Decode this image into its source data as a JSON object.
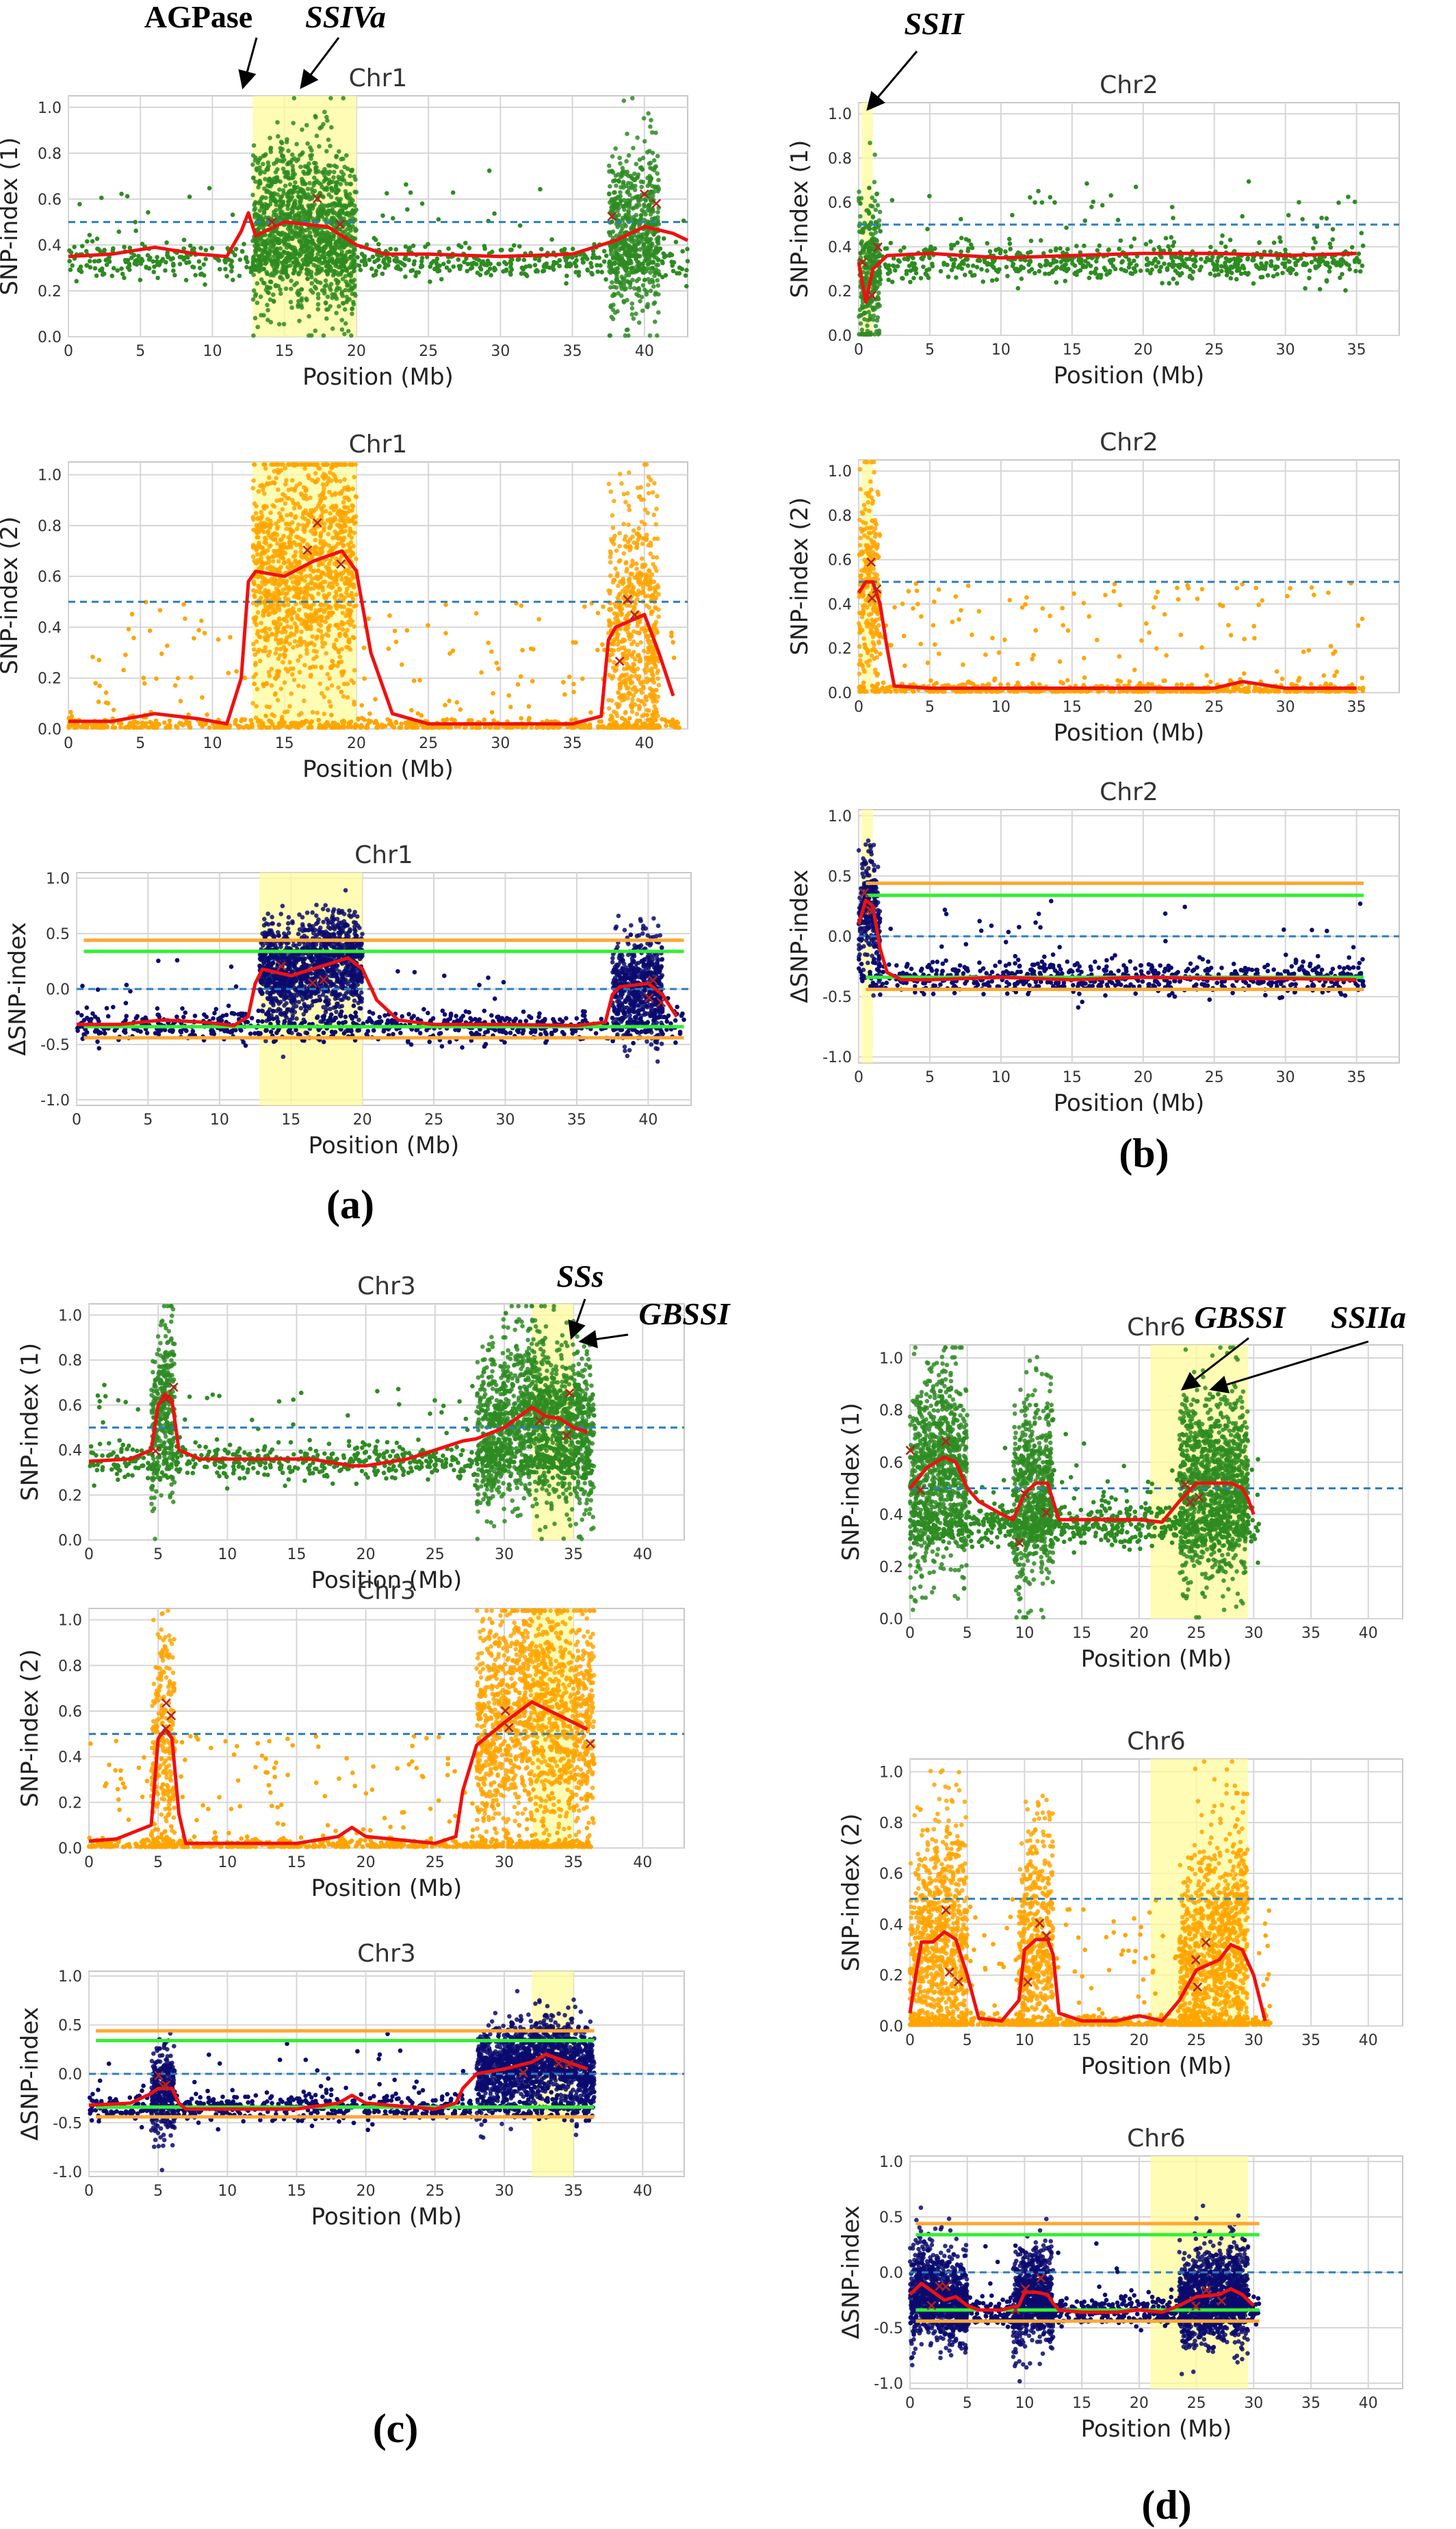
{
  "figure": {
    "panel_labels": [
      "(a)",
      "(b)",
      "(c)",
      "(d)"
    ],
    "gene_annotations": [
      {
        "panel": "a",
        "labels": [
          {
            "text": "AGPase",
            "italic": false
          },
          {
            "text": "SSIVa",
            "italic": true
          }
        ]
      },
      {
        "panel": "b",
        "labels": [
          {
            "text": "SSII",
            "italic": true
          }
        ]
      },
      {
        "panel": "c",
        "labels": [
          {
            "text": "SSs",
            "italic": true
          },
          {
            "text": "GBSSI",
            "italic": true
          }
        ]
      },
      {
        "panel": "d",
        "labels": [
          {
            "text": "GBSSI",
            "italic": true
          },
          {
            "text": "SSIIa",
            "italic": true
          }
        ]
      }
    ],
    "colors": {
      "snp1_points": "#2e8b22",
      "snp2_points": "#ffa500",
      "delta_points": "#0b0b6e",
      "smooth_line": "#ee1111",
      "threshold_dashed": "#2a7fc0",
      "ci99_line": "#ffa733",
      "ci95_line": "#33ee33",
      "highlight": "#fffb9c",
      "marker_x": "#b5221f"
    }
  },
  "chart_data": [
    {
      "panel": "a",
      "type": "scatter",
      "title": "Chr1",
      "xlabel": "Position (Mb)",
      "ylabel": "SNP-index (1)",
      "xlim": [
        0,
        43
      ],
      "ylim": [
        0,
        1.05
      ],
      "xticks": [
        0,
        5,
        10,
        15,
        20,
        25,
        30,
        35,
        40
      ],
      "yticks": [
        0.0,
        0.2,
        0.4,
        0.6,
        0.8,
        1.0
      ],
      "tick_labels_y": [
        "0.0",
        "0.2",
        "0.4",
        "0.6",
        "0.8",
        "1.0"
      ],
      "threshold": 0.5,
      "highlight": [
        12.8,
        20.0
      ],
      "dense": [
        [
          12.8,
          20.0
        ],
        [
          37.5,
          41.0
        ]
      ],
      "baseline": 0.33,
      "spread": 0.12,
      "smooth": {
        "x": [
          0,
          3,
          6,
          9,
          11,
          12,
          12.5,
          13,
          15,
          18,
          20,
          22,
          25,
          30,
          35,
          38,
          40,
          42,
          43
        ],
        "y": [
          0.35,
          0.36,
          0.39,
          0.36,
          0.35,
          0.46,
          0.54,
          0.44,
          0.5,
          0.48,
          0.4,
          0.36,
          0.36,
          0.35,
          0.36,
          0.42,
          0.48,
          0.45,
          0.42
        ]
      }
    },
    {
      "panel": "a",
      "type": "scatter",
      "title": "Chr1",
      "xlabel": "Position (Mb)",
      "ylabel": "SNP-index (2)",
      "xlim": [
        0,
        43
      ],
      "ylim": [
        0,
        1.05
      ],
      "xticks": [
        0,
        5,
        10,
        15,
        20,
        25,
        30,
        35,
        40
      ],
      "yticks": [
        0.0,
        0.2,
        0.4,
        0.6,
        0.8,
        1.0
      ],
      "tick_labels_y": [
        "0.0",
        "0.2",
        "0.4",
        "0.6",
        "0.8",
        "1.0"
      ],
      "threshold": 0.5,
      "highlight": [
        12.8,
        20.0
      ],
      "dense": [
        [
          12.8,
          20.0
        ],
        [
          37.5,
          41.0
        ]
      ],
      "baseline": 0.03,
      "spread": 0.07,
      "smooth": {
        "x": [
          0,
          3,
          6,
          9,
          11,
          12,
          12.5,
          13,
          15,
          17,
          19,
          20,
          21,
          22.5,
          25,
          30,
          35,
          37,
          37.5,
          38,
          40,
          41,
          42
        ],
        "y": [
          0.03,
          0.03,
          0.06,
          0.04,
          0.02,
          0.2,
          0.58,
          0.62,
          0.6,
          0.66,
          0.7,
          0.62,
          0.3,
          0.06,
          0.02,
          0.02,
          0.02,
          0.05,
          0.35,
          0.4,
          0.45,
          0.3,
          0.13
        ]
      }
    },
    {
      "panel": "a",
      "type": "scatter",
      "title": "Chr1",
      "xlabel": "Position (Mb)",
      "ylabel": "ΔSNP-index",
      "xlim": [
        0,
        43
      ],
      "ylim": [
        -1.05,
        1.05
      ],
      "xticks": [
        0,
        5,
        10,
        15,
        20,
        25,
        30,
        35,
        40
      ],
      "yticks": [
        -1.0,
        -0.5,
        0.0,
        0.5,
        1.0
      ],
      "tick_labels_y": [
        "-1.0",
        "-0.5",
        "0.0",
        "0.5",
        "1.0"
      ],
      "threshold": 0.0,
      "highlight": [
        12.8,
        20.0
      ],
      "dense": [
        [
          12.8,
          20.0
        ],
        [
          37.5,
          41.0
        ]
      ],
      "baseline": -0.33,
      "spread": 0.18,
      "ci": {
        "upper99": 0.44,
        "upper95": 0.34,
        "lower95": -0.34,
        "lower99": -0.44
      },
      "smooth": {
        "x": [
          0,
          3,
          6,
          9,
          11,
          12,
          12.5,
          13,
          15,
          17,
          19,
          20,
          21,
          22.5,
          25,
          30,
          35,
          37,
          37.5,
          38,
          40,
          41,
          42
        ],
        "y": [
          -0.32,
          -0.32,
          -0.28,
          -0.3,
          -0.33,
          -0.25,
          0.05,
          0.18,
          0.12,
          0.2,
          0.28,
          0.18,
          -0.1,
          -0.28,
          -0.32,
          -0.32,
          -0.33,
          -0.3,
          -0.05,
          0.02,
          0.05,
          -0.05,
          -0.25
        ]
      }
    },
    {
      "panel": "b",
      "type": "scatter",
      "title": "Chr2",
      "xlabel": "Position (Mb)",
      "ylabel": "SNP-index (1)",
      "xlim": [
        0,
        38
      ],
      "ylim": [
        0,
        1.05
      ],
      "xticks": [
        0,
        5,
        10,
        15,
        20,
        25,
        30,
        35
      ],
      "yticks": [
        0.0,
        0.2,
        0.4,
        0.6,
        0.8,
        1.0
      ],
      "tick_labels_y": [
        "0.0",
        "0.2",
        "0.4",
        "0.6",
        "0.8",
        "1.0"
      ],
      "threshold": 0.5,
      "highlight": [
        0.2,
        1.0
      ],
      "dense": [
        [
          0,
          1.5
        ]
      ],
      "baseline": 0.33,
      "spread": 0.1,
      "smooth": {
        "x": [
          0,
          0.5,
          1,
          2,
          5,
          10,
          15,
          20,
          25,
          30,
          35
        ],
        "y": [
          0.33,
          0.15,
          0.3,
          0.36,
          0.37,
          0.35,
          0.36,
          0.37,
          0.37,
          0.36,
          0.37
        ]
      }
    },
    {
      "panel": "b",
      "type": "scatter",
      "title": "Chr2",
      "xlabel": "Position (Mb)",
      "ylabel": "SNP-index (2)",
      "xlim": [
        0,
        38
      ],
      "ylim": [
        0,
        1.05
      ],
      "xticks": [
        0,
        5,
        10,
        15,
        20,
        25,
        30,
        35
      ],
      "yticks": [
        0.0,
        0.2,
        0.4,
        0.6,
        0.8,
        1.0
      ],
      "tick_labels_y": [
        "0.0",
        "0.2",
        "0.4",
        "0.6",
        "0.8",
        "1.0"
      ],
      "threshold": 0.5,
      "highlight": [
        0.2,
        1.0
      ],
      "dense": [
        [
          0,
          1.5
        ]
      ],
      "baseline": 0.02,
      "spread": 0.05,
      "smooth": {
        "x": [
          0,
          0.5,
          1,
          1.5,
          2,
          2.5,
          5,
          10,
          15,
          20,
          25,
          27,
          30,
          35
        ],
        "y": [
          0.45,
          0.5,
          0.5,
          0.4,
          0.2,
          0.03,
          0.02,
          0.02,
          0.02,
          0.02,
          0.02,
          0.05,
          0.02,
          0.02
        ]
      }
    },
    {
      "panel": "b",
      "type": "scatter",
      "title": "Chr2",
      "xlabel": "Position (Mb)",
      "ylabel": "ΔSNP-index",
      "xlim": [
        0,
        38
      ],
      "ylim": [
        -1.05,
        1.05
      ],
      "xticks": [
        0,
        5,
        10,
        15,
        20,
        25,
        30,
        35
      ],
      "yticks": [
        -1.0,
        -0.5,
        0.0,
        0.5,
        1.0
      ],
      "tick_labels_y": [
        "-1.0",
        "-0.5",
        "0.0",
        "0.5",
        "1.0"
      ],
      "threshold": 0.0,
      "highlight": [
        0.2,
        1.0
      ],
      "dense": [
        [
          0,
          1.5
        ]
      ],
      "baseline": -0.34,
      "spread": 0.15,
      "ci": {
        "upper99": 0.44,
        "upper95": 0.34,
        "lower95": -0.34,
        "lower99": -0.44
      },
      "smooth": {
        "x": [
          0,
          0.5,
          1,
          1.5,
          2,
          3,
          5,
          10,
          15,
          20,
          25,
          30,
          35
        ],
        "y": [
          0.1,
          0.3,
          0.25,
          -0.1,
          -0.3,
          -0.36,
          -0.36,
          -0.34,
          -0.36,
          -0.34,
          -0.35,
          -0.35,
          -0.36
        ]
      }
    },
    {
      "panel": "c",
      "type": "scatter",
      "title": "Chr3",
      "xlabel": "Position (Mb)",
      "ylabel": "SNP-index (1)",
      "xlim": [
        0,
        43
      ],
      "ylim": [
        0,
        1.05
      ],
      "xticks": [
        0,
        5,
        10,
        15,
        20,
        25,
        30,
        35,
        40
      ],
      "yticks": [
        0.0,
        0.2,
        0.4,
        0.6,
        0.8,
        1.0
      ],
      "tick_labels_y": [
        "0.0",
        "0.2",
        "0.4",
        "0.6",
        "0.8",
        "1.0"
      ],
      "threshold": 0.5,
      "highlight": [
        32.0,
        35.0
      ],
      "dense": [
        [
          4.5,
          6.2
        ],
        [
          28.0,
          36.5
        ]
      ],
      "baseline": 0.35,
      "spread": 0.1,
      "smooth": {
        "x": [
          0,
          3,
          4.5,
          5,
          5.5,
          6,
          6.5,
          8,
          12,
          16,
          19,
          20,
          23,
          25,
          27,
          28,
          30,
          32,
          33,
          34,
          35,
          36
        ],
        "y": [
          0.35,
          0.36,
          0.4,
          0.6,
          0.65,
          0.62,
          0.4,
          0.36,
          0.36,
          0.36,
          0.33,
          0.33,
          0.36,
          0.4,
          0.44,
          0.45,
          0.5,
          0.59,
          0.55,
          0.54,
          0.5,
          0.48
        ]
      }
    },
    {
      "panel": "c",
      "type": "scatter",
      "title": "Chr3",
      "xlabel": "Position (Mb)",
      "ylabel": "SNP-index (2)",
      "xlim": [
        0,
        43
      ],
      "ylim": [
        0,
        1.05
      ],
      "xticks": [
        0,
        5,
        10,
        15,
        20,
        25,
        30,
        35,
        40
      ],
      "yticks": [
        0.0,
        0.2,
        0.4,
        0.6,
        0.8,
        1.0
      ],
      "tick_labels_y": [
        "0.0",
        "0.2",
        "0.4",
        "0.6",
        "0.8",
        "1.0"
      ],
      "threshold": 0.5,
      "highlight": [
        32.0,
        35.0
      ],
      "dense": [
        [
          4.5,
          6.2
        ],
        [
          28.0,
          36.5
        ]
      ],
      "baseline": 0.03,
      "spread": 0.08,
      "smooth": {
        "x": [
          0,
          2,
          4.5,
          5,
          5.5,
          6,
          6.5,
          7,
          10,
          15,
          18,
          19,
          20,
          25,
          26.5,
          27,
          28,
          30,
          32,
          34,
          36
        ],
        "y": [
          0.03,
          0.04,
          0.1,
          0.48,
          0.52,
          0.48,
          0.15,
          0.02,
          0.02,
          0.02,
          0.05,
          0.09,
          0.05,
          0.02,
          0.05,
          0.25,
          0.45,
          0.55,
          0.64,
          0.58,
          0.52
        ]
      }
    },
    {
      "panel": "c",
      "type": "scatter",
      "title": "Chr3",
      "xlabel": "Position (Mb)",
      "ylabel": "ΔSNP-index",
      "xlim": [
        0,
        43
      ],
      "ylim": [
        -1.05,
        1.05
      ],
      "xticks": [
        0,
        5,
        10,
        15,
        20,
        25,
        30,
        35,
        40
      ],
      "yticks": [
        -1.0,
        -0.5,
        0.0,
        0.5,
        1.0
      ],
      "tick_labels_y": [
        "-1.0",
        "-0.5",
        "0.0",
        "0.5",
        "1.0"
      ],
      "threshold": 0.0,
      "highlight": [
        32.0,
        35.0
      ],
      "dense": [
        [
          4.5,
          6.2
        ],
        [
          28.0,
          36.5
        ]
      ],
      "baseline": -0.34,
      "spread": 0.15,
      "ci": {
        "upper99": 0.44,
        "upper95": 0.34,
        "lower95": -0.34,
        "lower99": -0.44
      },
      "smooth": {
        "x": [
          0,
          3,
          4.5,
          5,
          6,
          6.5,
          7,
          10,
          15,
          18,
          19,
          20,
          25,
          26.5,
          27,
          28,
          30,
          32,
          33,
          34,
          36
        ],
        "y": [
          -0.32,
          -0.3,
          -0.2,
          -0.15,
          -0.15,
          -0.3,
          -0.36,
          -0.36,
          -0.36,
          -0.3,
          -0.22,
          -0.3,
          -0.36,
          -0.3,
          -0.15,
          0.0,
          0.05,
          0.12,
          0.2,
          0.15,
          0.05
        ]
      }
    },
    {
      "panel": "d",
      "type": "scatter",
      "title": "Chr6",
      "xlabel": "Position (Mb)",
      "ylabel": "SNP-index (1)",
      "xlim": [
        0,
        43
      ],
      "ylim": [
        0,
        1.05
      ],
      "xticks": [
        0,
        5,
        10,
        15,
        20,
        25,
        30,
        35,
        40
      ],
      "yticks": [
        0.0,
        0.2,
        0.4,
        0.6,
        0.8,
        1.0
      ],
      "tick_labels_y": [
        "0.0",
        "0.2",
        "0.4",
        "0.6",
        "0.8",
        "1.0"
      ],
      "threshold": 0.5,
      "highlight": [
        21.0,
        29.5
      ],
      "dense": [
        [
          0,
          5.0
        ],
        [
          9.0,
          12.5
        ],
        [
          23.5,
          29.5
        ]
      ],
      "baseline": 0.36,
      "spread": 0.1,
      "smooth": {
        "x": [
          0,
          1.5,
          3,
          4,
          5,
          6,
          8,
          9,
          10,
          11,
          12,
          12.5,
          13,
          16,
          20,
          22,
          23.5,
          25,
          27,
          28,
          29,
          29.5,
          30
        ],
        "y": [
          0.5,
          0.58,
          0.62,
          0.6,
          0.5,
          0.45,
          0.4,
          0.38,
          0.48,
          0.52,
          0.52,
          0.45,
          0.38,
          0.38,
          0.38,
          0.37,
          0.45,
          0.52,
          0.52,
          0.52,
          0.5,
          0.46,
          0.4
        ]
      }
    },
    {
      "panel": "d",
      "type": "scatter",
      "title": "Chr6",
      "xlabel": "Position (Mb)",
      "ylabel": "SNP-index (2)",
      "xlim": [
        0,
        43
      ],
      "ylim": [
        0,
        1.05
      ],
      "xticks": [
        0,
        5,
        10,
        15,
        20,
        25,
        30,
        35,
        40
      ],
      "yticks": [
        0.0,
        0.2,
        0.4,
        0.6,
        0.8,
        1.0
      ],
      "tick_labels_y": [
        "0.0",
        "0.2",
        "0.4",
        "0.6",
        "0.8",
        "1.0"
      ],
      "threshold": 0.5,
      "highlight": [
        21.0,
        29.5
      ],
      "dense": [
        [
          0,
          5.0
        ],
        [
          9.5,
          12.5
        ],
        [
          23.5,
          29.5
        ]
      ],
      "baseline": 0.02,
      "spread": 0.06,
      "smooth": {
        "x": [
          0,
          0.5,
          1,
          2,
          3,
          4,
          5,
          6,
          8,
          9.5,
          10,
          11,
          12,
          12.5,
          13,
          15,
          18,
          20,
          22,
          23.5,
          25,
          27,
          28,
          29,
          30,
          31
        ],
        "y": [
          0.05,
          0.2,
          0.33,
          0.33,
          0.37,
          0.34,
          0.2,
          0.03,
          0.02,
          0.1,
          0.3,
          0.34,
          0.34,
          0.28,
          0.05,
          0.02,
          0.02,
          0.04,
          0.02,
          0.1,
          0.22,
          0.26,
          0.32,
          0.3,
          0.2,
          0.02
        ]
      }
    },
    {
      "panel": "d",
      "type": "scatter",
      "title": "Chr6",
      "xlabel": "Position (Mb)",
      "ylabel": "ΔSNP-index",
      "xlim": [
        0,
        43
      ],
      "ylim": [
        -1.05,
        1.05
      ],
      "xticks": [
        0,
        5,
        10,
        15,
        20,
        25,
        30,
        35,
        40
      ],
      "yticks": [
        -1.0,
        -0.5,
        0.0,
        0.5,
        1.0
      ],
      "tick_labels_y": [
        "-1.0",
        "-0.5",
        "0.0",
        "0.5",
        "1.0"
      ],
      "threshold": 0.0,
      "highlight": [
        21.0,
        29.5
      ],
      "dense": [
        [
          0,
          5.0
        ],
        [
          9.0,
          12.5
        ],
        [
          23.5,
          29.5
        ]
      ],
      "baseline": -0.35,
      "spread": 0.17,
      "ci": {
        "upper99": 0.44,
        "upper95": 0.34,
        "lower95": -0.34,
        "lower99": -0.44
      },
      "smooth": {
        "x": [
          0,
          1,
          3,
          4,
          5,
          6,
          8,
          9.5,
          10,
          11,
          12,
          12.5,
          13,
          15,
          18,
          20,
          22,
          23.5,
          25,
          27,
          28,
          29,
          30
        ],
        "y": [
          -0.2,
          -0.1,
          -0.25,
          -0.22,
          -0.3,
          -0.34,
          -0.34,
          -0.3,
          -0.18,
          -0.18,
          -0.2,
          -0.28,
          -0.34,
          -0.36,
          -0.36,
          -0.34,
          -0.36,
          -0.3,
          -0.22,
          -0.2,
          -0.15,
          -0.2,
          -0.3
        ]
      }
    }
  ]
}
